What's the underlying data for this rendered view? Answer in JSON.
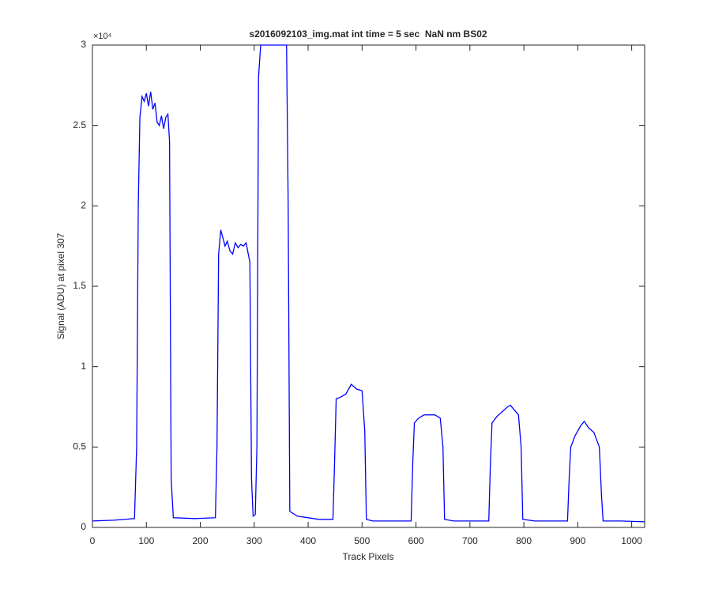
{
  "chart_data": {
    "type": "line",
    "title": "s2016092103_img.mat int time = 5 sec  NaN nm BS02",
    "x_label": "Track Pixels",
    "y_label": "Signal (ADU) at pixel 307",
    "y_exponent_label": "×10⁴",
    "xlim": [
      0,
      1024
    ],
    "xticks": [
      0,
      100,
      200,
      300,
      400,
      500,
      600,
      700,
      800,
      900,
      1000
    ],
    "ylim": [
      0,
      30000
    ],
    "yticks": [
      {
        "value": 0,
        "label": "0"
      },
      {
        "value": 5000,
        "label": "0.5"
      },
      {
        "value": 10000,
        "label": "1"
      },
      {
        "value": 15000,
        "label": "1.5"
      },
      {
        "value": 20000,
        "label": "2"
      },
      {
        "value": 25000,
        "label": "2.5"
      },
      {
        "value": 30000,
        "label": "3"
      }
    ],
    "series": [
      {
        "color": "#0000ff",
        "x": [
          0,
          40,
          78,
          82,
          85,
          88,
          92,
          96,
          100,
          104,
          108,
          112,
          116,
          120,
          124,
          128,
          132,
          136,
          140,
          143,
          146,
          150,
          190,
          228,
          231,
          234,
          238,
          242,
          246,
          250,
          255,
          260,
          265,
          270,
          275,
          280,
          285,
          289,
          292,
          295,
          298,
          302,
          305,
          308,
          312,
          340,
          360,
          363,
          366,
          380,
          420,
          446,
          449,
          452,
          460,
          470,
          480,
          490,
          500,
          505,
          508,
          520,
          580,
          591,
          594,
          597,
          605,
          615,
          625,
          635,
          645,
          650,
          653,
          670,
          720,
          735,
          738,
          741,
          750,
          760,
          770,
          775,
          780,
          790,
          795,
          798,
          820,
          870,
          881,
          884,
          887,
          895,
          905,
          912,
          920,
          930,
          940,
          944,
          947,
          980,
          1024
        ],
        "values": [
          400,
          450,
          550,
          5000,
          20000,
          25500,
          26800,
          26500,
          27000,
          26200,
          27100,
          26000,
          26400,
          25200,
          25000,
          25600,
          24800,
          25500,
          25700,
          24000,
          3000,
          600,
          550,
          600,
          5000,
          17000,
          18500,
          18000,
          17500,
          17800,
          17200,
          17000,
          17700,
          17400,
          17600,
          17500,
          17700,
          17000,
          16500,
          3000,
          700,
          800,
          5000,
          28000,
          30000,
          30000,
          30000,
          20000,
          1000,
          700,
          500,
          500,
          4000,
          8000,
          8100,
          8300,
          8900,
          8600,
          8500,
          6000,
          500,
          400,
          400,
          400,
          4000,
          6500,
          6800,
          7000,
          7000,
          7000,
          6800,
          5000,
          500,
          400,
          400,
          400,
          4000,
          6500,
          6900,
          7200,
          7500,
          7600,
          7400,
          7000,
          5000,
          500,
          400,
          400,
          400,
          3000,
          5000,
          5700,
          6300,
          6600,
          6200,
          5900,
          5000,
          2000,
          400,
          400,
          350
        ]
      }
    ]
  }
}
